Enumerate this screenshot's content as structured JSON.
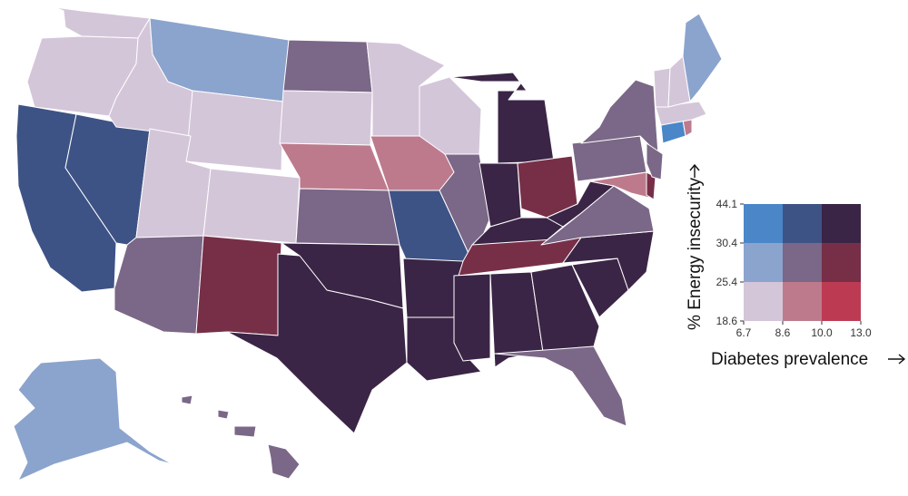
{
  "legend": {
    "y_axis_title": "% Energy insecurity",
    "x_axis_title": "Diabetes prevalence",
    "y_ticks": [
      "18.6",
      "25.4",
      "30.4",
      "44.1"
    ],
    "x_ticks": [
      "6.7",
      "8.6",
      "10.0",
      "13.0"
    ],
    "grid_colors": [
      [
        "#4a86c8",
        "#3e5385",
        "#3b2546"
      ],
      [
        "#8ba4cd",
        "#7b6787",
        "#772f48"
      ],
      [
        "#d4c6d9",
        "#be7a8d",
        "#bd3b52"
      ]
    ]
  },
  "colors": {
    "low_low": "#d4c6d9",
    "mid_low": "#be7a8d",
    "high_low": "#bd3b52",
    "low_mid": "#8ba4cd",
    "mid_mid": "#7b6787",
    "high_mid": "#772f48",
    "low_high": "#4a86c8",
    "mid_high": "#3e5385",
    "high_high": "#3b2546"
  },
  "states": [
    {
      "id": "WA",
      "class": "low_low"
    },
    {
      "id": "OR",
      "class": "low_low"
    },
    {
      "id": "CA",
      "class": "mid_high"
    },
    {
      "id": "NV",
      "class": "mid_high"
    },
    {
      "id": "ID",
      "class": "low_low"
    },
    {
      "id": "MT",
      "class": "low_mid"
    },
    {
      "id": "WY",
      "class": "low_low"
    },
    {
      "id": "UT",
      "class": "low_low"
    },
    {
      "id": "CO",
      "class": "low_low"
    },
    {
      "id": "AZ",
      "class": "mid_mid"
    },
    {
      "id": "NM",
      "class": "high_mid"
    },
    {
      "id": "ND",
      "class": "mid_mid"
    },
    {
      "id": "SD",
      "class": "low_low"
    },
    {
      "id": "NE",
      "class": "mid_low"
    },
    {
      "id": "KS",
      "class": "mid_mid"
    },
    {
      "id": "OK",
      "class": "high_high"
    },
    {
      "id": "TX",
      "class": "high_high"
    },
    {
      "id": "MN",
      "class": "low_low"
    },
    {
      "id": "IA",
      "class": "mid_low"
    },
    {
      "id": "MO",
      "class": "mid_high"
    },
    {
      "id": "AR",
      "class": "high_high"
    },
    {
      "id": "LA",
      "class": "high_high"
    },
    {
      "id": "WI",
      "class": "low_low"
    },
    {
      "id": "IL",
      "class": "mid_mid"
    },
    {
      "id": "MI",
      "class": "high_high"
    },
    {
      "id": "IN",
      "class": "high_high"
    },
    {
      "id": "OH",
      "class": "high_mid"
    },
    {
      "id": "KY",
      "class": "high_high"
    },
    {
      "id": "TN",
      "class": "high_mid"
    },
    {
      "id": "MS",
      "class": "high_high"
    },
    {
      "id": "AL",
      "class": "high_high"
    },
    {
      "id": "GA",
      "class": "high_high"
    },
    {
      "id": "FL",
      "class": "mid_mid"
    },
    {
      "id": "SC",
      "class": "high_high"
    },
    {
      "id": "NC",
      "class": "high_high"
    },
    {
      "id": "VA",
      "class": "mid_mid"
    },
    {
      "id": "WV",
      "class": "high_high"
    },
    {
      "id": "PA",
      "class": "mid_mid"
    },
    {
      "id": "NY",
      "class": "mid_mid"
    },
    {
      "id": "MD",
      "class": "mid_low"
    },
    {
      "id": "DE",
      "class": "high_mid"
    },
    {
      "id": "NJ",
      "class": "mid_mid"
    },
    {
      "id": "CT",
      "class": "low_high"
    },
    {
      "id": "RI",
      "class": "mid_low"
    },
    {
      "id": "MA",
      "class": "low_low"
    },
    {
      "id": "VT",
      "class": "low_low"
    },
    {
      "id": "NH",
      "class": "low_low"
    },
    {
      "id": "ME",
      "class": "low_mid"
    },
    {
      "id": "AK",
      "class": "low_mid"
    },
    {
      "id": "HI",
      "class": "mid_mid"
    }
  ]
}
